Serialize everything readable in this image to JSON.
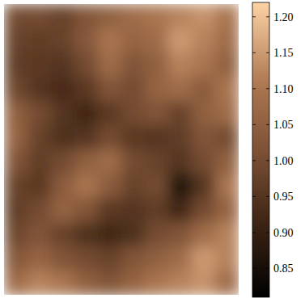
{
  "chart_data": {
    "type": "heatmap",
    "tick_labels": false,
    "cells": [
      [
        1.0,
        1.0,
        0.98,
        1.02,
        1.05,
        1.08,
        1.1,
        1.12,
        1.14,
        1.1
      ],
      [
        0.98,
        0.97,
        0.98,
        1.03,
        1.1,
        1.06,
        1.08,
        1.15,
        1.12,
        1.08
      ],
      [
        0.97,
        0.96,
        0.95,
        1.0,
        1.08,
        1.02,
        1.05,
        1.12,
        1.1,
        1.05
      ],
      [
        0.99,
        0.95,
        0.93,
        0.96,
        1.02,
        1.0,
        1.06,
        1.08,
        1.04,
        1.1
      ],
      [
        1.05,
        1.0,
        0.95,
        0.92,
        0.96,
        1.0,
        1.02,
        0.98,
        1.05,
        1.08
      ],
      [
        1.06,
        0.98,
        0.94,
        0.95,
        1.0,
        0.96,
        0.95,
        0.97,
        1.02,
        1.0
      ],
      [
        1.02,
        0.97,
        1.0,
        1.05,
        1.08,
        1.0,
        0.98,
        0.95,
        1.0,
        1.05
      ],
      [
        0.98,
        0.96,
        1.04,
        1.1,
        1.04,
        0.98,
        1.0,
        0.86,
        0.95,
        1.1
      ],
      [
        0.97,
        1.0,
        1.06,
        1.02,
        0.96,
        0.95,
        0.97,
        0.92,
        1.0,
        1.06
      ],
      [
        0.99,
        1.02,
        0.98,
        0.94,
        0.92,
        0.94,
        1.0,
        1.02,
        1.08,
        1.12
      ],
      [
        1.03,
        1.06,
        1.02,
        1.0,
        0.98,
        1.02,
        1.05,
        1.08,
        1.15,
        1.12
      ],
      [
        1.08,
        1.12,
        1.1,
        1.05,
        1.02,
        1.06,
        1.1,
        1.12,
        1.14,
        1.08
      ]
    ],
    "colorbar": {
      "range": [
        0.81,
        1.22
      ],
      "ticks": [
        0.85,
        {
          "value": 0.9,
          "label": "0.90"
        },
        0.95,
        {
          "value": 1.0,
          "label": "1.00"
        },
        1.05,
        {
          "value": 1.1,
          "label": "1.10"
        },
        1.15,
        {
          "value": 1.2,
          "label": "1.20"
        }
      ]
    }
  }
}
